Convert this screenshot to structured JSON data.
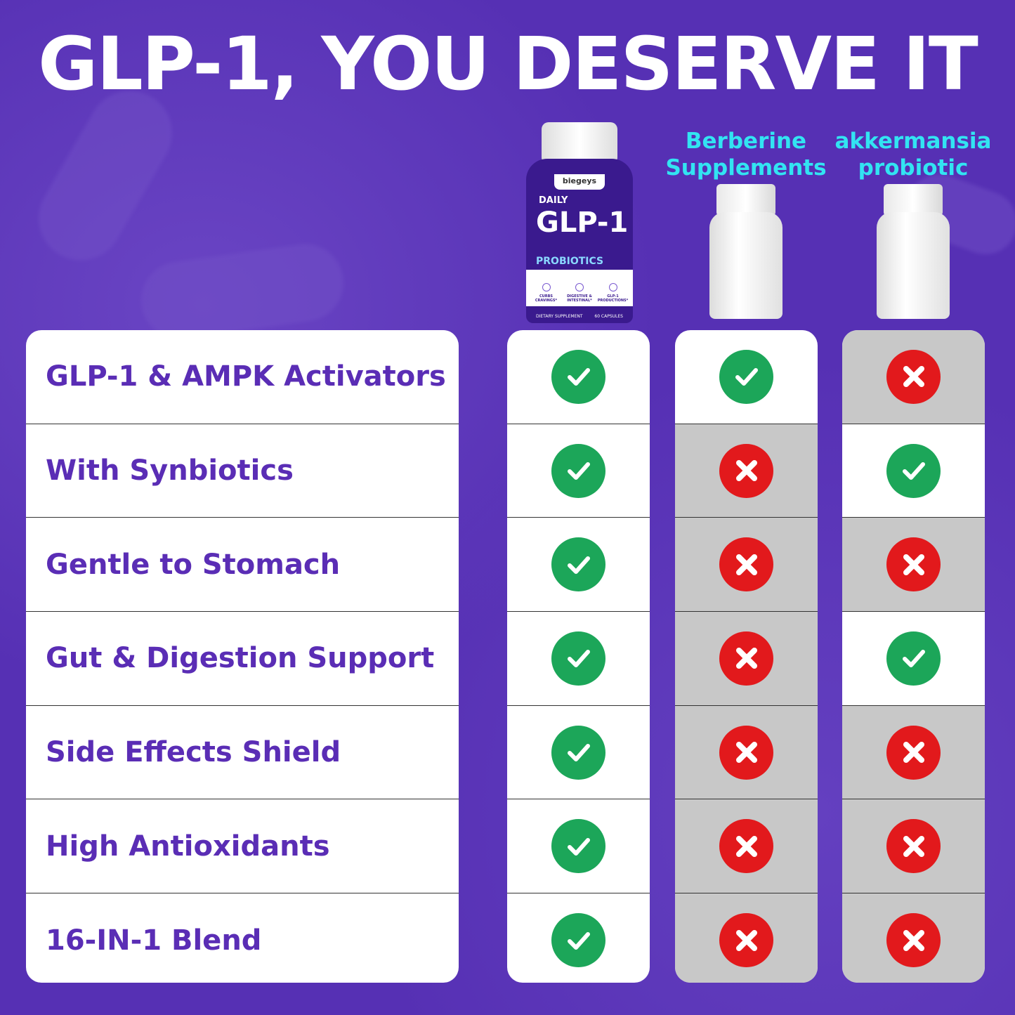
{
  "title": "GLP-1, YOU DESERVE IT",
  "product": {
    "brand": "biegeys",
    "line1": "DAILY",
    "line2": "GLP-1",
    "badge": "PROBIOTICS",
    "features": [
      "CURBS CRAVINGS*",
      "DIGESTIVE & INTESTINAL*",
      "GLP-1 PRODUCTIONS*"
    ],
    "footer_left": "DIETARY SUPPLEMENT",
    "footer_right": "60 CAPSULES"
  },
  "columns": [
    {
      "name": ""
    },
    {
      "name": "Berberine Supplements"
    },
    {
      "name": "akkermansia probiotic"
    }
  ],
  "rows": [
    "GLP-1 & AMPK Activators",
    "With Synbiotics",
    "Gentle to Stomach",
    "Gut & Digestion Support",
    "Side Effects Shield",
    "High Antioxidants",
    "16-IN-1 Blend"
  ],
  "matrix": [
    [
      true,
      true,
      true,
      true,
      true,
      true,
      true
    ],
    [
      true,
      false,
      false,
      false,
      false,
      false,
      false
    ],
    [
      false,
      true,
      false,
      true,
      false,
      false,
      false
    ]
  ],
  "colors": {
    "background": "#5630b4",
    "label": "#5a2db5",
    "header": "#32e4f2",
    "check": "#1ca659",
    "cross": "#e2191c",
    "cell_gray": "#c8c8c8"
  }
}
